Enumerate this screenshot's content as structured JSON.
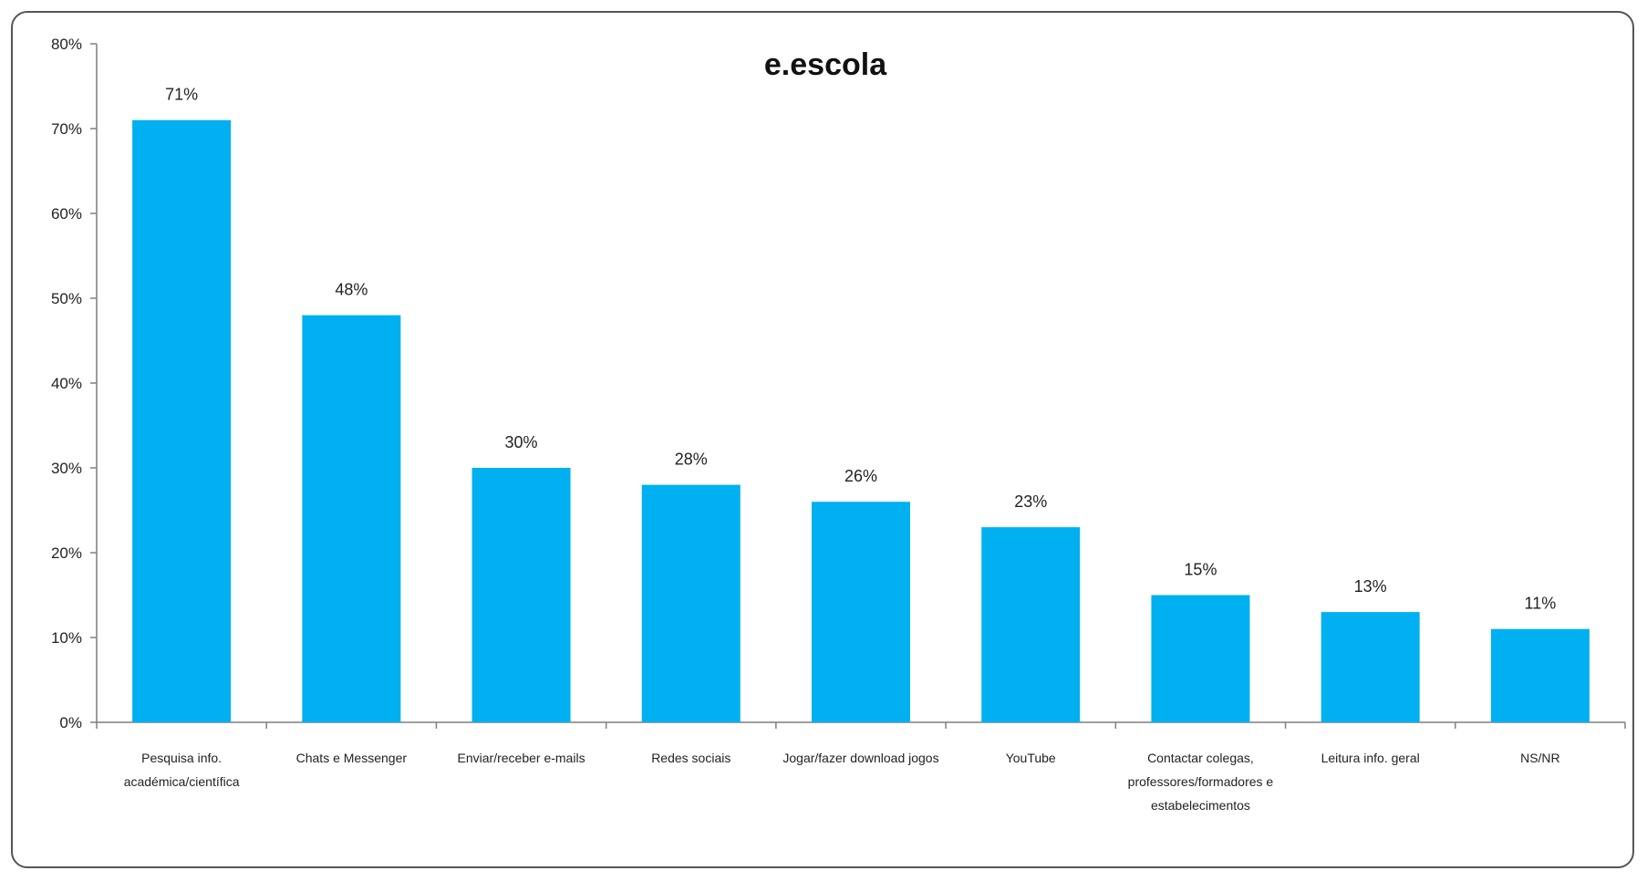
{
  "chart_data": {
    "type": "bar",
    "title": "e.escola",
    "categories": [
      [
        "Pesquisa info.",
        "académica/científica"
      ],
      [
        "Chats e Messenger"
      ],
      [
        "Enviar/receber e-mails"
      ],
      [
        "Redes sociais"
      ],
      [
        "Jogar/fazer download jogos"
      ],
      [
        "YouTube"
      ],
      [
        "Contactar colegas,",
        "professores/formadores e",
        "estabelecimentos"
      ],
      [
        "Leitura info. geral"
      ],
      [
        "NS/NR"
      ]
    ],
    "values": [
      71,
      48,
      30,
      28,
      26,
      23,
      15,
      13,
      11
    ],
    "data_labels": [
      "71%",
      "48%",
      "30%",
      "28%",
      "26%",
      "23%",
      "15%",
      "13%",
      "11%"
    ],
    "ylim": [
      0,
      80
    ],
    "y_ticks": [
      "0%",
      "10%",
      "20%",
      "30%",
      "40%",
      "50%",
      "60%",
      "70%",
      "80%"
    ],
    "y_tick_values": [
      0,
      10,
      20,
      30,
      40,
      50,
      60,
      70,
      80
    ],
    "bar_color": "#00B0F0",
    "grid": false,
    "legend": "none"
  }
}
